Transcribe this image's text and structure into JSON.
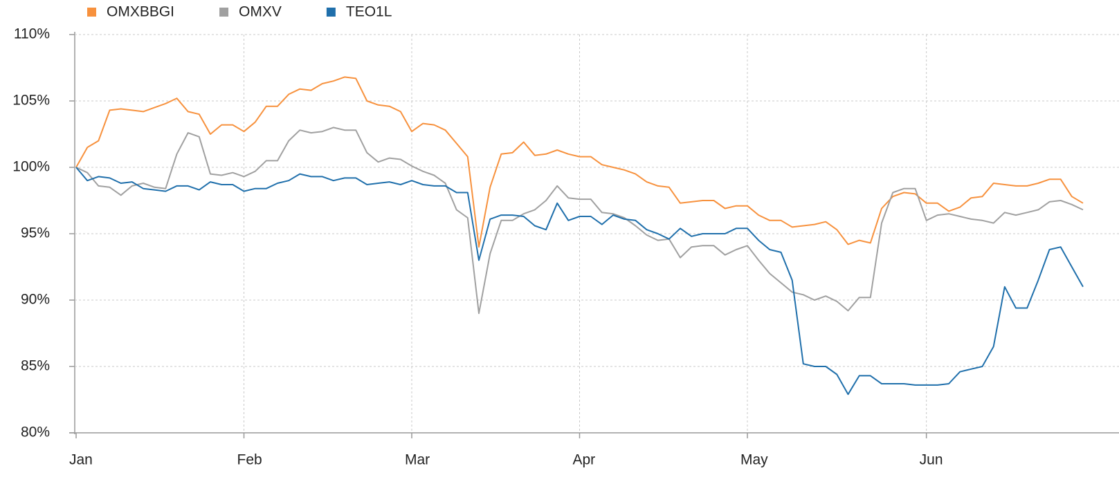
{
  "chart_data": {
    "type": "line",
    "categories": [
      "Jan",
      null,
      null,
      null,
      null,
      null,
      null,
      null,
      null,
      null,
      null,
      null,
      null,
      null,
      null,
      "Feb",
      null,
      null,
      null,
      null,
      null,
      null,
      null,
      null,
      null,
      null,
      null,
      null,
      null,
      null,
      "Mar",
      null,
      null,
      null,
      null,
      null,
      null,
      null,
      null,
      null,
      null,
      null,
      null,
      null,
      null,
      "Apr",
      null,
      null,
      null,
      null,
      null,
      null,
      null,
      null,
      null,
      null,
      null,
      null,
      null,
      null,
      "May",
      null,
      null,
      null,
      null,
      null,
      null,
      null,
      null,
      null,
      null,
      null,
      null,
      null,
      null,
      null,
      "Jun",
      null,
      null,
      null,
      null,
      null,
      null,
      null,
      null,
      null,
      null,
      null,
      null,
      null,
      null
    ],
    "series": [
      {
        "name": "OMXBBGI",
        "color": "#f7913d",
        "values": [
          100,
          101.5,
          102,
          104.3,
          104.4,
          104.3,
          104.2,
          104.5,
          104.8,
          105.2,
          104.2,
          104,
          102.5,
          103.2,
          103.2,
          102.7,
          103.4,
          104.6,
          104.6,
          105.5,
          105.9,
          105.8,
          106.3,
          106.5,
          106.8,
          106.7,
          105,
          104.7,
          104.6,
          104.2,
          102.7,
          103.3,
          103.2,
          102.8,
          101.8,
          100.8,
          94,
          98.5,
          101,
          101.1,
          101.9,
          100.9,
          101,
          101.3,
          101,
          100.8,
          100.8,
          100.2,
          100,
          99.8,
          99.5,
          98.9,
          98.6,
          98.5,
          97.3,
          97.4,
          97.5,
          97.5,
          96.9,
          97.1,
          97.1,
          96.4,
          96,
          96,
          95.5,
          95.6,
          95.7,
          95.9,
          95.3,
          94.2,
          94.5,
          94.3,
          96.9,
          97.8,
          98.1,
          98,
          97.3,
          97.3,
          96.7,
          97,
          97.7,
          97.8,
          98.8,
          98.7,
          98.6,
          98.6,
          98.8,
          99.1,
          99.1,
          97.8,
          97.3
        ]
      },
      {
        "name": "OMXV",
        "color": "#a0a0a0",
        "values": [
          100,
          99.6,
          98.6,
          98.5,
          97.9,
          98.6,
          98.8,
          98.5,
          98.4,
          101,
          102.6,
          102.3,
          99.5,
          99.4,
          99.6,
          99.3,
          99.7,
          100.5,
          100.5,
          102,
          102.8,
          102.6,
          102.7,
          103,
          102.8,
          102.8,
          101.1,
          100.4,
          100.7,
          100.6,
          100.1,
          99.7,
          99.4,
          98.8,
          96.8,
          96.2,
          89,
          93.5,
          96,
          96,
          96.5,
          96.8,
          97.5,
          98.6,
          97.7,
          97.6,
          97.6,
          96.6,
          96.5,
          96.2,
          95.6,
          94.9,
          94.5,
          94.6,
          93.2,
          94,
          94.1,
          94.1,
          93.4,
          93.8,
          94.1,
          93,
          92,
          91.3,
          90.6,
          90.4,
          90,
          90.3,
          89.9,
          89.2,
          90.2,
          90.2,
          95.8,
          98.1,
          98.4,
          98.4,
          96,
          96.4,
          96.5,
          96.3,
          96.1,
          96,
          95.8,
          96.6,
          96.4,
          96.6,
          96.8,
          97.4,
          97.5,
          97.2,
          96.8
        ]
      },
      {
        "name": "TEO1L",
        "color": "#1f6fab",
        "values": [
          100,
          99,
          99.3,
          99.2,
          98.8,
          98.9,
          98.4,
          98.3,
          98.2,
          98.6,
          98.6,
          98.3,
          98.9,
          98.7,
          98.7,
          98.2,
          98.4,
          98.4,
          98.8,
          99,
          99.5,
          99.3,
          99.3,
          99,
          99.2,
          99.2,
          98.7,
          98.8,
          98.9,
          98.7,
          99,
          98.7,
          98.6,
          98.6,
          98.1,
          98.1,
          93,
          96.1,
          96.4,
          96.4,
          96.3,
          95.6,
          95.3,
          97.3,
          96,
          96.3,
          96.3,
          95.7,
          96.4,
          96.1,
          96,
          95.3,
          95,
          94.6,
          95.4,
          94.8,
          95,
          95,
          95,
          95.4,
          95.4,
          94.5,
          93.8,
          93.6,
          91.5,
          85.2,
          85,
          85,
          84.4,
          82.9,
          84.3,
          84.3,
          83.7,
          83.7,
          83.7,
          83.6,
          83.6,
          83.6,
          83.7,
          84.6,
          84.8,
          85,
          86.5,
          91,
          89.4,
          89.4,
          91.5,
          93.8,
          94,
          92.5,
          91
        ]
      }
    ],
    "ylim": [
      80,
      110
    ],
    "yticks": [
      {
        "value": 80,
        "label": "80%"
      },
      {
        "value": 85,
        "label": "85%"
      },
      {
        "value": 90,
        "label": "90%"
      },
      {
        "value": 95,
        "label": "95%"
      },
      {
        "value": 100,
        "label": "100%"
      },
      {
        "value": 105,
        "label": "105%"
      },
      {
        "value": 110,
        "label": "110%"
      }
    ],
    "grid": true,
    "legend": "top-left"
  }
}
